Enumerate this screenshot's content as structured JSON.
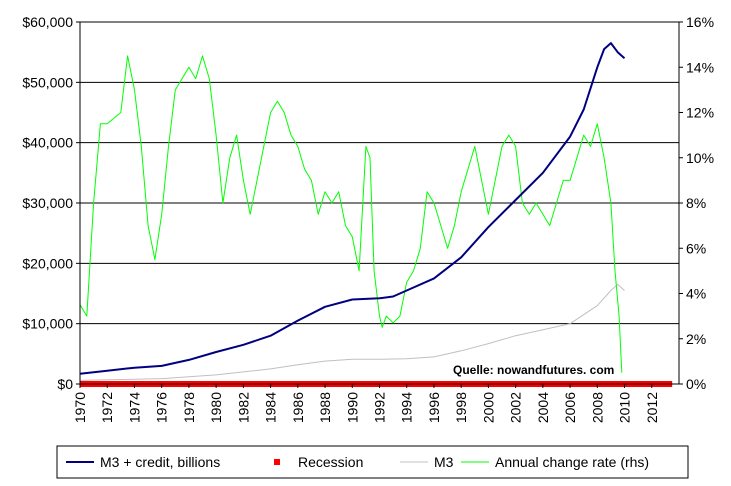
{
  "chart_data": {
    "type": "line",
    "title": "",
    "source_note": "Quelle: nowandfutures. com",
    "x_axis": {
      "range": [
        1970,
        2014
      ],
      "ticks": [
        1970,
        1972,
        1974,
        1976,
        1978,
        1980,
        1982,
        1984,
        1986,
        1988,
        1990,
        1992,
        1994,
        1996,
        1998,
        2000,
        2002,
        2004,
        2006,
        2008,
        2010,
        2012
      ],
      "tick_labels": [
        "1970",
        "1972",
        "1974",
        "1976",
        "1978",
        "1980",
        "1982",
        "1984",
        "1986",
        "1988",
        "1990",
        "1992",
        "1994",
        "1996",
        "1998",
        "2000",
        "2002",
        "2004",
        "2006",
        "2008",
        "2010",
        "2012"
      ]
    },
    "y_left": {
      "range": [
        0,
        60000
      ],
      "ticks": [
        0,
        10000,
        20000,
        30000,
        40000,
        50000,
        60000
      ],
      "tick_labels": [
        "$0",
        "$10,000",
        "$20,000",
        "$30,000",
        "$40,000",
        "$50,000",
        "$60,000"
      ]
    },
    "y_right": {
      "range": [
        0,
        16
      ],
      "ticks": [
        0,
        2,
        4,
        6,
        8,
        10,
        12,
        14,
        16
      ],
      "tick_labels": [
        "0%",
        "2%",
        "4%",
        "6%",
        "8%",
        "10%",
        "12%",
        "14%",
        "16%"
      ]
    },
    "grid": "horizontal",
    "legend_position": "bottom",
    "colors": {
      "m3_credit": "#000080",
      "recession": "#ff0000",
      "m3": "#c0c0c0",
      "annual_change": "#00ff00",
      "frame": "#000000",
      "legend_bg": "#ffffff"
    },
    "series": [
      {
        "name": "M3 + credit, billions",
        "key": "m3_credit",
        "axis": "left",
        "x": [
          1970,
          1972,
          1974,
          1976,
          1978,
          1980,
          1982,
          1984,
          1986,
          1988,
          1990,
          1992,
          1993,
          1994,
          1996,
          1998,
          2000,
          2002,
          2004,
          2006,
          2007,
          2008,
          2008.5,
          2009,
          2009.5,
          2010
        ],
        "y": [
          1700,
          2200,
          2700,
          3000,
          4000,
          5300,
          6500,
          8000,
          10500,
          12800,
          14000,
          14200,
          14500,
          15500,
          17500,
          21000,
          26000,
          30500,
          35000,
          41000,
          45500,
          52500,
          55500,
          56500,
          55000,
          54000
        ]
      },
      {
        "name": "Recession",
        "key": "recession",
        "axis": "left",
        "x": [
          1970,
          2013.5
        ],
        "y": [
          0,
          0
        ]
      },
      {
        "name": "M3",
        "key": "m3",
        "axis": "left",
        "x": [
          1970,
          1972,
          1974,
          1976,
          1978,
          1980,
          1982,
          1984,
          1986,
          1988,
          1990,
          1992,
          1994,
          1996,
          1998,
          2000,
          2002,
          2004,
          2006,
          2008,
          2009,
          2009.5,
          2010
        ],
        "y": [
          600,
          700,
          800,
          900,
          1200,
          1500,
          2000,
          2500,
          3200,
          3800,
          4100,
          4100,
          4200,
          4500,
          5500,
          6700,
          8000,
          9000,
          10000,
          13000,
          15500,
          16500,
          15500
        ]
      },
      {
        "name": "Annual change rate (rhs)",
        "key": "annual_change",
        "axis": "right",
        "x": [
          1970,
          1970.5,
          1971,
          1971.5,
          1972,
          1973,
          1973.5,
          1974,
          1974.5,
          1975,
          1975.5,
          1976,
          1976.5,
          1977,
          1977.5,
          1978,
          1978.5,
          1979,
          1979.5,
          1980,
          1980.5,
          1981,
          1981.5,
          1982,
          1982.5,
          1983,
          1983.5,
          1984,
          1984.5,
          1985,
          1985.5,
          1986,
          1986.5,
          1987,
          1987.5,
          1988,
          1988.5,
          1989,
          1989.5,
          1990,
          1990.5,
          1991,
          1991.3,
          1991.6,
          1992,
          1992.2,
          1992.5,
          1993,
          1993.5,
          1994,
          1994.5,
          1995,
          1995.5,
          1996,
          1996.5,
          1997,
          1997.5,
          1998,
          1998.5,
          1999,
          1999.5,
          2000,
          2000.5,
          2001,
          2001.5,
          2002,
          2002.5,
          2003,
          2003.5,
          2004,
          2004.5,
          2005,
          2005.5,
          2006,
          2006.5,
          2007,
          2007.5,
          2008,
          2008.5,
          2009,
          2009.3,
          2009.6,
          2009.8
        ],
        "y": [
          3.5,
          3,
          8,
          11.5,
          11.5,
          12,
          14.5,
          13,
          10.5,
          7,
          5.5,
          7.5,
          10.5,
          13,
          13.5,
          14,
          13.5,
          14.5,
          13.5,
          11,
          8,
          10,
          11,
          9,
          7.5,
          9,
          10.5,
          12,
          12.5,
          12,
          11,
          10.5,
          9.5,
          9,
          7.5,
          8.5,
          8,
          8.5,
          7,
          6.5,
          5,
          10.5,
          10,
          5,
          3,
          2.5,
          3,
          2.7,
          3,
          4.5,
          5,
          6,
          8.5,
          8,
          7,
          6,
          7,
          8.5,
          9.5,
          10.5,
          9,
          7.5,
          9,
          10.5,
          11,
          10.5,
          8,
          7.5,
          8,
          7.5,
          7,
          8,
          9,
          9,
          10,
          11,
          10.5,
          11.5,
          10,
          8,
          5,
          3,
          0.5
        ]
      }
    ],
    "legend": [
      {
        "key": "m3_credit",
        "label": "M3 + credit, billions",
        "symbol": "line"
      },
      {
        "key": "recession",
        "label": "Recession",
        "symbol": "square"
      },
      {
        "key": "m3",
        "label": "M3",
        "symbol": "line"
      },
      {
        "key": "annual_change",
        "label": "Annual change rate (rhs)",
        "symbol": "line"
      }
    ]
  }
}
